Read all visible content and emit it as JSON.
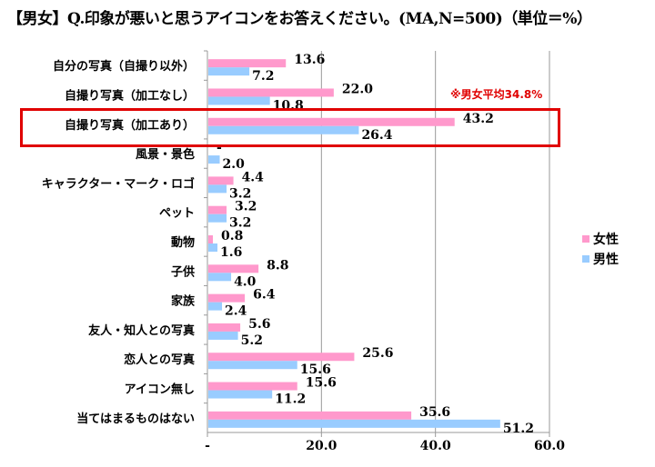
{
  "chart_data": {
    "type": "bar",
    "orientation": "horizontal",
    "title": "【男女】Q.印象が悪いと思うアイコンをお答えください。(MA,N=500)（単位＝%）",
    "categories": [
      "自分の写真（自撮り以外）",
      "自撮り写真（加工なし）",
      "自撮り写真（加工あり）",
      "風景・景色",
      "キャラクター・マーク・ロゴ",
      "ペット",
      "動物",
      "子供",
      "家族",
      "友人・知人との写真",
      "恋人との写真",
      "アイコン無し",
      "当てはまるものはない"
    ],
    "series": [
      {
        "name": "女性",
        "color": "#ff99cc",
        "values": [
          13.6,
          22.0,
          43.2,
          0,
          4.4,
          3.2,
          0.8,
          8.8,
          6.4,
          5.6,
          25.6,
          15.6,
          35.6
        ],
        "labels": [
          "13.6",
          "22.0",
          "43.2",
          "-",
          "4.4",
          "3.2",
          "0.8",
          "8.8",
          "6.4",
          "5.6",
          "25.6",
          "15.6",
          "35.6"
        ]
      },
      {
        "name": "男性",
        "color": "#99ccff",
        "values": [
          7.2,
          10.8,
          26.4,
          2.0,
          3.2,
          3.2,
          1.6,
          4.0,
          2.4,
          5.2,
          15.6,
          11.2,
          51.2
        ],
        "labels": [
          "7.2",
          "10.8",
          "26.4",
          "2.0",
          "3.2",
          "3.2",
          "1.6",
          "4.0",
          "2.4",
          "5.2",
          "15.6",
          "11.2",
          "51.2"
        ]
      }
    ],
    "xlim": [
      0,
      60
    ],
    "xticks": [
      0,
      20,
      40,
      60
    ],
    "xtick_labels": [
      "-",
      "20.0",
      "40.0",
      "60.0"
    ],
    "grid": true,
    "legend_position": "right",
    "annotation": "※男女平均34.8%",
    "highlighted_category": "自撮り写真（加工あり）"
  }
}
